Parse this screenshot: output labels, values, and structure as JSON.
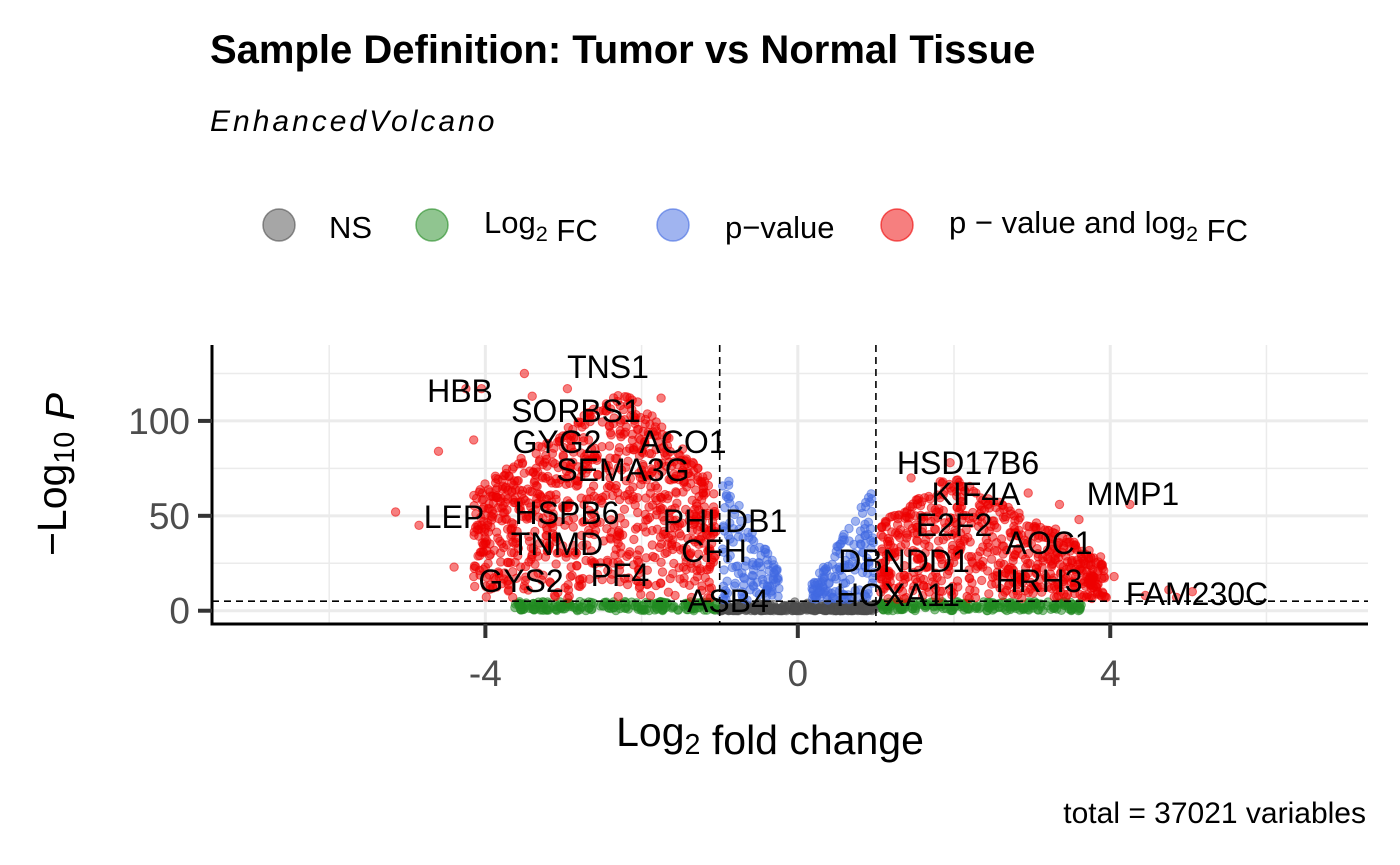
{
  "chart_data": {
    "type": "scatter",
    "title": "Sample Definition: Tumor vs Normal Tissue",
    "subtitle": "EnhancedVolcano",
    "xlabel": "Log2 fold change",
    "ylabel": "-Log10 P",
    "caption": "total = 37021 variables",
    "xlim": [
      -7.5,
      7.3
    ],
    "ylim": [
      -7,
      140
    ],
    "x_ticks": [
      {
        "value": -4,
        "label": "-4"
      },
      {
        "value": 0,
        "label": "0"
      },
      {
        "value": 4,
        "label": "4"
      }
    ],
    "y_ticks": [
      {
        "value": 0,
        "label": "0"
      },
      {
        "value": 50,
        "label": "50"
      },
      {
        "value": 100,
        "label": "100"
      }
    ],
    "grid": true,
    "legend_position": "top",
    "legend": [
      {
        "key": "ns",
        "label": "NS",
        "color": "#4d4d4d"
      },
      {
        "key": "fc",
        "label": "Log2 FC",
        "color": "#228b22"
      },
      {
        "key": "p",
        "label": "p-value",
        "color": "#4169e1"
      },
      {
        "key": "both",
        "label": "p - value and log2 FC",
        "color": "#ee0000"
      }
    ],
    "thresholds": {
      "log2fc": 1.0,
      "p_cutoff_y": 5
    },
    "colors": {
      "ns": "#4d4d4d",
      "fc": "#228b22",
      "p": "#4169e1",
      "both": "#ee0000"
    },
    "labeled_genes": [
      {
        "gene": "TNS1",
        "x": -3.0,
        "y": 127
      },
      {
        "gene": "HBB",
        "x": -4.5,
        "y": 115
      },
      {
        "gene": "SORBS1",
        "x": -2.8,
        "y": 104
      },
      {
        "gene": "GYG2",
        "x": -3.1,
        "y": 88
      },
      {
        "gene": "ACO1",
        "x": -1.9,
        "y": 87
      },
      {
        "gene": "SEMA3G",
        "x": -2.1,
        "y": 73
      },
      {
        "gene": "HSD17B6",
        "x": 2.0,
        "y": 78
      },
      {
        "gene": "KIF4A",
        "x": 1.6,
        "y": 61
      },
      {
        "gene": "MMP1",
        "x": 4.3,
        "y": 57
      },
      {
        "gene": "LEP",
        "x": -4.7,
        "y": 52
      },
      {
        "gene": "HSPB6",
        "x": -3.3,
        "y": 52
      },
      {
        "gene": "PHLDB1",
        "x": -1.1,
        "y": 48
      },
      {
        "gene": "E2F2",
        "x": 1.3,
        "y": 45
      },
      {
        "gene": "TNMD",
        "x": -3.6,
        "y": 40
      },
      {
        "gene": "AOC1",
        "x": 2.8,
        "y": 37
      },
      {
        "gene": "CFH",
        "x": -1.3,
        "y": 32
      },
      {
        "gene": "DBNDD1",
        "x": 0.9,
        "y": 28
      },
      {
        "gene": "PF4",
        "x": -2.6,
        "y": 23
      },
      {
        "gene": "GYS2",
        "x": -3.9,
        "y": 18
      },
      {
        "gene": "HRH3",
        "x": 2.5,
        "y": 16
      },
      {
        "gene": "FAM230C",
        "x": 4.9,
        "y": 10
      },
      {
        "gene": "HOXA11",
        "x": 1.3,
        "y": 6
      },
      {
        "gene": "ASB4",
        "x": -1.0,
        "y": 5
      }
    ]
  }
}
